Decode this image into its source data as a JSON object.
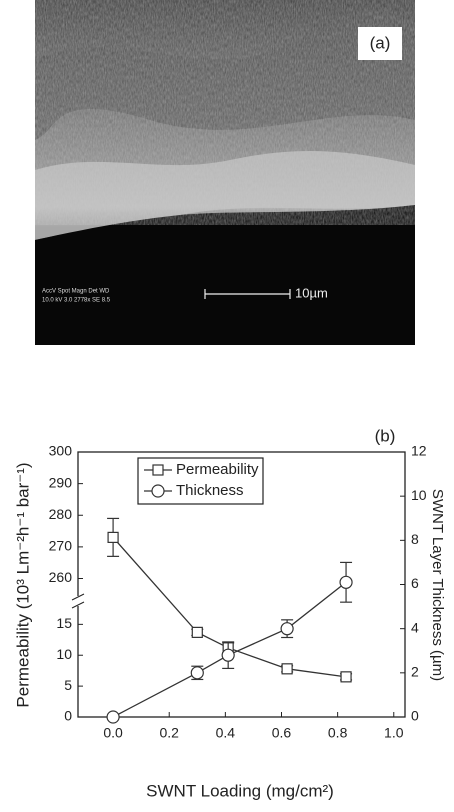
{
  "image_a": {
    "label": "(a)",
    "info_line_1": "AccV  Spot Magn   Det  WD",
    "info_line_2": "10.0 kV 3.0  2778x   SE   8.5",
    "scale_bar": "10µm"
  },
  "chart_data": {
    "type": "line",
    "panel_label": "(b)",
    "x_label": "SWNT Loading (mg/cm²)",
    "y_label": "Permeability (10³ Lm⁻²h⁻¹ bar⁻¹)",
    "y2_label": "SWNT Layer Thickness (µm)",
    "xlim": [
      -0.125,
      1.04
    ],
    "xticks": [
      {
        "value": 0,
        "label": "0.0"
      },
      0.2,
      0.4,
      0.6,
      0.8,
      {
        "value": 1,
        "label": "1.0"
      }
    ],
    "ylim_segments": [
      [
        0,
        17
      ],
      [
        257,
        300
      ]
    ],
    "yticks": [
      0,
      5,
      10,
      15,
      260,
      270,
      280,
      290,
      300
    ],
    "y2lim": [
      0,
      12
    ],
    "y2ticks": [
      0,
      2,
      4,
      6,
      8,
      10,
      12
    ],
    "legend": "upper left",
    "series": [
      {
        "name": "Permeability",
        "color": "#333333",
        "marker": "square",
        "x": [
          0,
          0.3,
          0.41,
          0.62,
          0.83
        ],
        "values": [
          273,
          13.7,
          11.2,
          7.8,
          6.5
        ],
        "errors": [
          6,
          0.5,
          0.8,
          0.5,
          0.5
        ]
      },
      {
        "name": "Thickness",
        "color": "#333333",
        "marker": "circle",
        "axis": "y2",
        "x": [
          0,
          0.3,
          0.41,
          0.62,
          0.83
        ],
        "values": [
          0,
          2.0,
          2.8,
          4.0,
          6.1
        ],
        "errors": [
          0,
          0.3,
          0.6,
          0.4,
          0.9
        ]
      }
    ]
  }
}
